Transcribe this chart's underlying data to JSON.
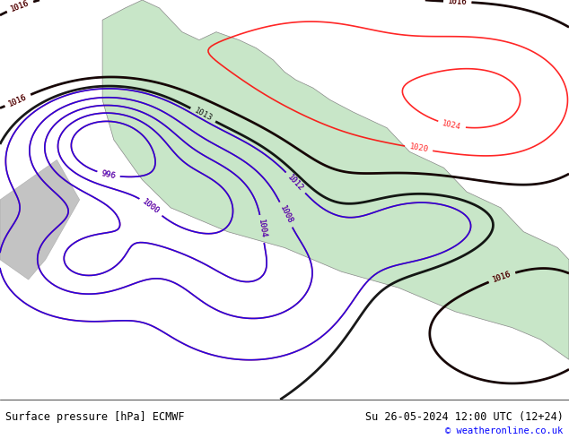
{
  "title_left": "Surface pressure [hPa] ECMWF",
  "title_right": "Su 26-05-2024 12:00 UTC (12+24)",
  "copyright": "© weatheronline.co.uk",
  "bg_color": "#ffffff",
  "map_bg": "#c8e6fa",
  "land_color": "#c8e6c8",
  "figure_width": 6.34,
  "figure_height": 4.9,
  "dpi": 100
}
